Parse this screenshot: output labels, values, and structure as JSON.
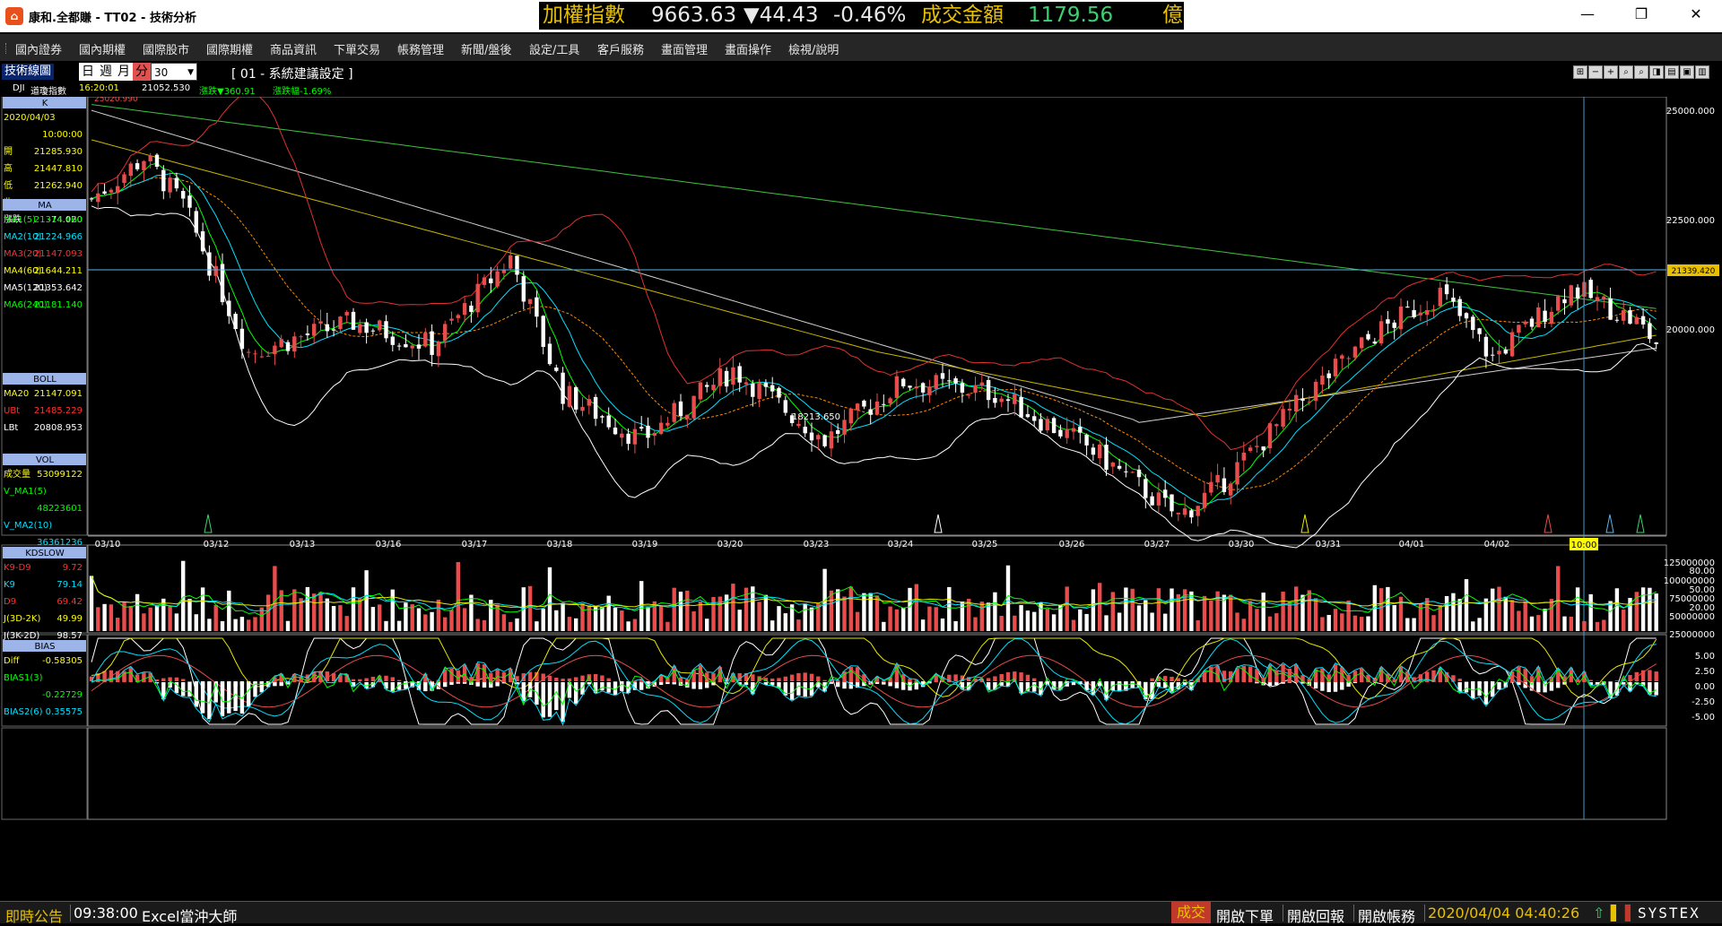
{
  "window": {
    "title": "康和.全都賺 - TT02 - 技術分析",
    "logo_glyph": "⌂",
    "minimize": "—",
    "maximize": "❐",
    "close": "✕"
  },
  "ticker": {
    "index_label": "加權指數",
    "index_value": "9663.63",
    "change": "▼44.43",
    "change_pct": "-0.46%",
    "turnover_label": "成交金額",
    "turnover_value": "1179.56",
    "unit": "億",
    "color": "#e8c000",
    "value_color": "#e8e8e8",
    "green": "#3cd070"
  },
  "menu": [
    "國內證券",
    "國內期權",
    "國際股市",
    "國際期權",
    "商品資訊",
    "下單交易",
    "帳務管理",
    "新聞/盤後",
    "設定/工具",
    "客戶服務",
    "畫面管理",
    "畫面操作",
    "檢視/說明"
  ],
  "toolbar": {
    "label": "技術線圖",
    "periods": [
      "日",
      "週",
      "月",
      "分"
    ],
    "active_period": "分",
    "interval": "30",
    "setting": "[ 01 - 系統建議設定 ]",
    "mini_buttons": [
      "⊞",
      "−",
      "+",
      "⌕",
      "⌕",
      "◨",
      "▤",
      "▣",
      "▥"
    ]
  },
  "infobar": {
    "symbol": "DJI",
    "name": "道瓊指數",
    "time": "16:20:01",
    "price": "21052.530",
    "change_label": "漲跌▼360.91",
    "change_pct_label": "漲跌幅-1.69%"
  },
  "panels": {
    "k": {
      "title": "K",
      "rows": [
        {
          "label": "2020/04/03",
          "value": "",
          "color": "#ffff00"
        },
        {
          "label": "",
          "value": "10:00:00",
          "color": "#ffff00"
        },
        {
          "label": "開",
          "value": "21285.930",
          "color": "#ffff00"
        },
        {
          "label": "高",
          "value": "21447.810",
          "color": "#ffff00"
        },
        {
          "label": "低",
          "value": "21262.940",
          "color": "#ffff00"
        },
        {
          "label": "收",
          "value": "21339.420",
          "color": "#ffff00"
        },
        {
          "label": "漲跌",
          "value": "-74.020",
          "color": "#ffffff"
        }
      ]
    },
    "ma": {
      "title": "MA",
      "rows": [
        {
          "label": "MA1(5)",
          "value": "21314.460",
          "color": "#00ff00"
        },
        {
          "label": "MA2(10)",
          "value": "21224.966",
          "color": "#00e0ff"
        },
        {
          "label": "MA3(20)",
          "value": "21147.093",
          "color": "#ff3030"
        },
        {
          "label": "MA4(60)",
          "value": "21644.211",
          "color": "#ffff00"
        },
        {
          "label": "MA5(120)",
          "value": "21353.642",
          "color": "#ffffff"
        },
        {
          "label": "MA6(240)",
          "value": "21181.140",
          "color": "#00ff00"
        }
      ]
    },
    "boll": {
      "title": "BOLL",
      "rows": [
        {
          "label": "MA20",
          "value": "21147.091",
          "color": "#ffff00"
        },
        {
          "label": "UBt",
          "value": "21485.229",
          "color": "#ff3030"
        },
        {
          "label": "LBt",
          "value": "20808.953",
          "color": "#ffffff"
        }
      ]
    },
    "vol": {
      "title": "VOL",
      "rows": [
        {
          "label": "成交量",
          "value": "53099122",
          "color": "#ffff00"
        },
        {
          "label": "V_MA1(5)",
          "value": "",
          "color": "#00ff00"
        },
        {
          "label": "",
          "value": "48223601",
          "color": "#00ff00"
        },
        {
          "label": "V_MA2(10)",
          "value": "",
          "color": "#00e0ff"
        },
        {
          "label": "",
          "value": "36361236",
          "color": "#00e0ff"
        }
      ]
    },
    "kd": {
      "title": "KDSLOW",
      "rows": [
        {
          "label": "K9-D9",
          "value": "9.72",
          "color": "#ff3030"
        },
        {
          "label": "K9",
          "value": "79.14",
          "color": "#00e0ff"
        },
        {
          "label": "D9",
          "value": "69.42",
          "color": "#ff3030"
        },
        {
          "label": "J(3D-2K)",
          "value": "49.99",
          "color": "#ffff00"
        },
        {
          "label": "J(3K-2D)",
          "value": "98.57",
          "color": "#ffffff"
        }
      ]
    },
    "bias": {
      "title": "BIAS",
      "rows": [
        {
          "label": "Diff",
          "value": "-0.58305",
          "color": "#ffff00"
        },
        {
          "label": "BIAS1(3)",
          "value": "",
          "color": "#00ff00"
        },
        {
          "label": "",
          "value": "-0.22729",
          "color": "#00ff00"
        },
        {
          "label": "BIAS2(6)",
          "value": "0.35575",
          "color": "#00e0ff"
        }
      ]
    }
  },
  "chart_data": {
    "type": "candlestick",
    "x_dates": [
      "03/10",
      "03/12",
      "03/13",
      "03/16",
      "03/17",
      "03/18",
      "03/19",
      "03/20",
      "03/23",
      "03/24",
      "03/25",
      "03/26",
      "03/27",
      "03/30",
      "03/31",
      "04/01",
      "04/02"
    ],
    "cursor_time_label": "10:00",
    "price_axis": {
      "ticks": [
        "25000.000",
        "22500.000",
        "20000.000"
      ],
      "ylim": [
        18200,
        25600
      ]
    },
    "current_price_label": "21339.420",
    "annotations": {
      "high": "25020.990",
      "low": "18213.650"
    },
    "vol_axis": {
      "ticks": [
        "125000000",
        "100000000",
        "75000000",
        "50000000",
        "25000000"
      ]
    },
    "kd_axis": {
      "ticks": [
        "80.00",
        "50.00",
        "20.00"
      ]
    },
    "bias_axis": {
      "ticks": [
        "5.00",
        "2.50",
        "0.00",
        "-2.50",
        "-5.00"
      ]
    },
    "colors": {
      "up": "#e84c4c",
      "down": "#ffffff",
      "ma5": "#00ff00",
      "ma10": "#00e0ff",
      "ma20": "#ff8c00",
      "ma60": "#c8b400",
      "ma120": "#d0d0d0",
      "ma240": "#40c040",
      "bb_up": "#e03030",
      "bb_low": "#ffffff"
    }
  },
  "status": {
    "notice": "即時公告",
    "time": "09:38:00",
    "message": "Excel當沖大師",
    "trade": "成交",
    "open_order": "開啟下單",
    "open_report": "開啟回報",
    "open_account": "開啟帳務",
    "datetime": "2020/04/04 04:40:26",
    "brand": "SYSTEX"
  }
}
